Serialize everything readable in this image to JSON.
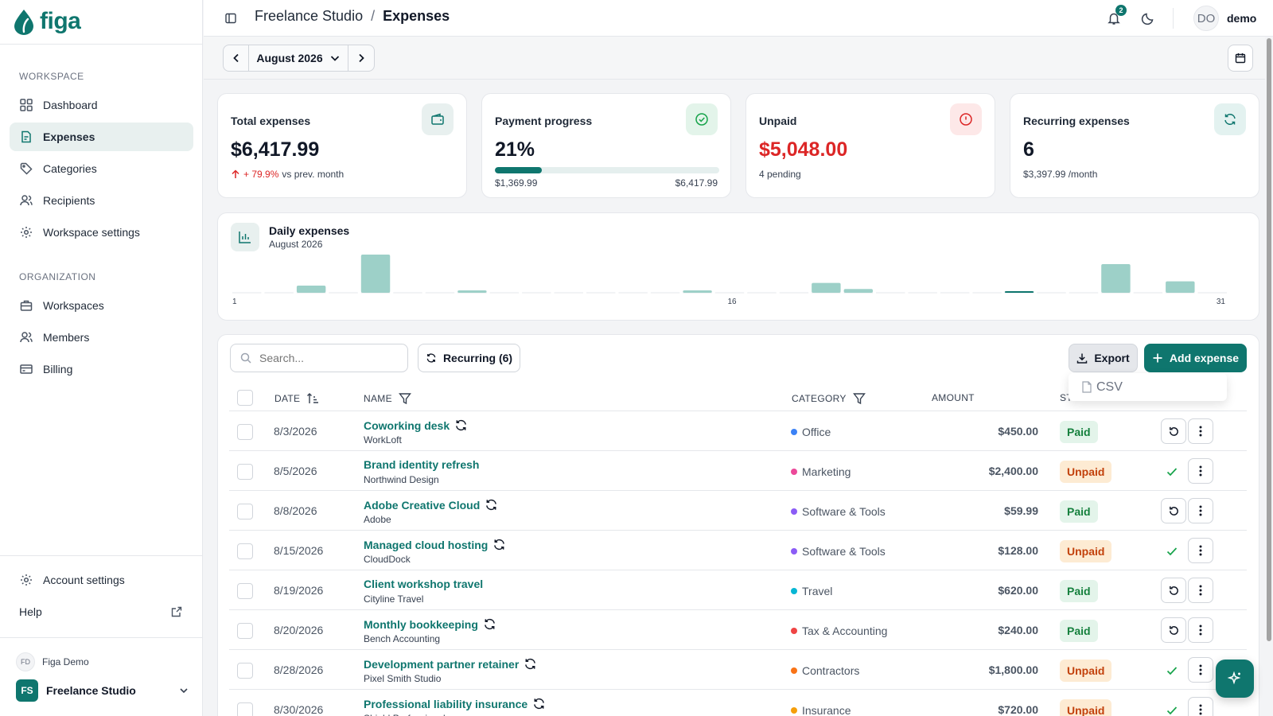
{
  "app": {
    "logo_text": "figa",
    "accent": "#0f766e"
  },
  "sidebar": {
    "workspace_label": "WORKSPACE",
    "organization_label": "ORGANIZATION",
    "items": [
      {
        "label": "Dashboard",
        "icon": "grid-icon"
      },
      {
        "label": "Expenses",
        "icon": "receipt-icon",
        "active": true
      },
      {
        "label": "Categories",
        "icon": "tag-icon"
      },
      {
        "label": "Recipients",
        "icon": "users-icon"
      },
      {
        "label": "Workspace settings",
        "icon": "gear-icon"
      }
    ],
    "org_items": [
      {
        "label": "Workspaces",
        "icon": "briefcase-icon"
      },
      {
        "label": "Members",
        "icon": "users-icon"
      },
      {
        "label": "Billing",
        "icon": "credit-card-icon"
      }
    ],
    "account_settings": "Account settings",
    "help": "Help",
    "user": {
      "initials": "FD",
      "name": "Figa Demo"
    },
    "workspace": {
      "initials": "FS",
      "name": "Freelance Studio"
    }
  },
  "header": {
    "breadcrumb_parent": "Freelance Studio",
    "breadcrumb_sep": "/",
    "breadcrumb_current": "Expenses",
    "notification_count": "2",
    "avatar_initials": "DO",
    "username": "demo"
  },
  "period": {
    "label": "August 2026"
  },
  "stats": {
    "total": {
      "title": "Total expenses",
      "value": "$6,417.99",
      "change": "+ 79.9%",
      "change_suffix": "vs prev. month"
    },
    "progress": {
      "title": "Payment progress",
      "value": "21%",
      "percent": 21,
      "paid": "$1,369.99",
      "total": "$6,417.99"
    },
    "unpaid": {
      "title": "Unpaid",
      "value": "$5,048.00",
      "sub": "4 pending"
    },
    "recurring": {
      "title": "Recurring expenses",
      "value": "6",
      "sub": "$3,397.99 /month"
    }
  },
  "chart_data": {
    "type": "bar",
    "title": "Daily expenses",
    "subtitle": "August 2026",
    "x_tick_labels": [
      "1",
      "16",
      "31"
    ],
    "categories": [
      1,
      2,
      3,
      4,
      5,
      6,
      7,
      8,
      9,
      10,
      11,
      12,
      13,
      14,
      15,
      16,
      17,
      18,
      19,
      20,
      21,
      22,
      23,
      24,
      25,
      26,
      27,
      28,
      29,
      30,
      31
    ],
    "values": [
      0,
      0,
      450,
      0,
      2400,
      0,
      0,
      59.99,
      0,
      0,
      0,
      0,
      0,
      0,
      128,
      0,
      0,
      0,
      620,
      240,
      0,
      0,
      0,
      0,
      0,
      0,
      0,
      1800,
      0,
      720,
      0
    ],
    "highlight_day": 25,
    "color": "#9dd0c8"
  },
  "toolbar": {
    "search_placeholder": "Search...",
    "recurring_label": "Recurring (6)",
    "export_label": "Export",
    "add_label": "Add expense",
    "export_menu_item": "CSV"
  },
  "table": {
    "headers": {
      "date": "DATE",
      "name": "NAME",
      "category": "CATEGORY",
      "amount": "AMOUNT",
      "status": "ST"
    },
    "rows": [
      {
        "date": "8/3/2026",
        "name": "Coworking desk",
        "vendor": "WorkLoft",
        "recurring": true,
        "category": "Office",
        "cat_color": "#3b82f6",
        "amount": "$450.00",
        "status": "Paid"
      },
      {
        "date": "8/5/2026",
        "name": "Brand identity refresh",
        "vendor": "Northwind Design",
        "recurring": false,
        "category": "Marketing",
        "cat_color": "#ec4899",
        "amount": "$2,400.00",
        "status": "Unpaid"
      },
      {
        "date": "8/8/2026",
        "name": "Adobe Creative Cloud",
        "vendor": "Adobe",
        "recurring": true,
        "category": "Software & Tools",
        "cat_color": "#8b5cf6",
        "amount": "$59.99",
        "status": "Paid"
      },
      {
        "date": "8/15/2026",
        "name": "Managed cloud hosting",
        "vendor": "CloudDock",
        "recurring": true,
        "category": "Software & Tools",
        "cat_color": "#8b5cf6",
        "amount": "$128.00",
        "status": "Unpaid"
      },
      {
        "date": "8/19/2026",
        "name": "Client workshop travel",
        "vendor": "Cityline Travel",
        "recurring": false,
        "category": "Travel",
        "cat_color": "#06b6d4",
        "amount": "$620.00",
        "status": "Paid"
      },
      {
        "date": "8/20/2026",
        "name": "Monthly bookkeeping",
        "vendor": "Bench Accounting",
        "recurring": true,
        "category": "Tax & Accounting",
        "cat_color": "#ef4444",
        "amount": "$240.00",
        "status": "Paid"
      },
      {
        "date": "8/28/2026",
        "name": "Development partner retainer",
        "vendor": "Pixel Smith Studio",
        "recurring": true,
        "category": "Contractors",
        "cat_color": "#f97316",
        "amount": "$1,800.00",
        "status": "Unpaid"
      },
      {
        "date": "8/30/2026",
        "name": "Professional liability insurance",
        "vendor": "Shield Professional",
        "recurring": true,
        "category": "Insurance",
        "cat_color": "#f59e0b",
        "amount": "$720.00",
        "status": "Unpaid"
      }
    ]
  }
}
